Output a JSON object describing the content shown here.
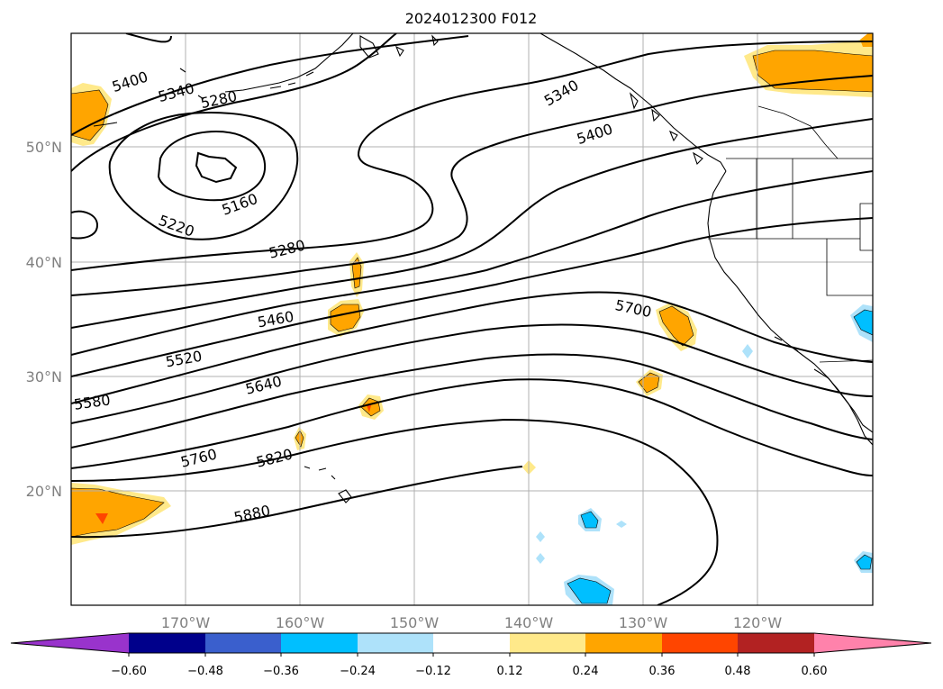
{
  "title": "2024012300 F012",
  "lat_labels": [
    "50°N",
    "40°N",
    "30°N",
    "20°N"
  ],
  "lon_labels": [
    "170°W",
    "160°W",
    "150°W",
    "140°W",
    "130°W",
    "120°W"
  ],
  "contour_labels": [
    "5400",
    "5340",
    "5280",
    "5160",
    "5220",
    "5280",
    "5460",
    "5520",
    "5580",
    "5640",
    "5760",
    "5820",
    "5880",
    "5340",
    "5400",
    "5700"
  ],
  "colorbar": {
    "ticks": [
      "−0.60",
      "−0.48",
      "−0.36",
      "−0.24",
      "−0.12",
      "0.12",
      "0.24",
      "0.36",
      "0.48",
      "0.60"
    ],
    "colors": [
      "#9933cc",
      "#00008b",
      "#3a5fcd",
      "#00bfff",
      "#aee2fa",
      "#ffffff",
      "#ffe98a",
      "#ffa500",
      "#ff4500",
      "#b22222",
      "#ff82ab"
    ]
  },
  "shading_colors": {
    "light_yellow": "#ffe98a",
    "orange": "#ffa500",
    "red_orange": "#ff4500",
    "deep_sky_blue": "#00bfff",
    "light_blue": "#aee2fa"
  }
}
